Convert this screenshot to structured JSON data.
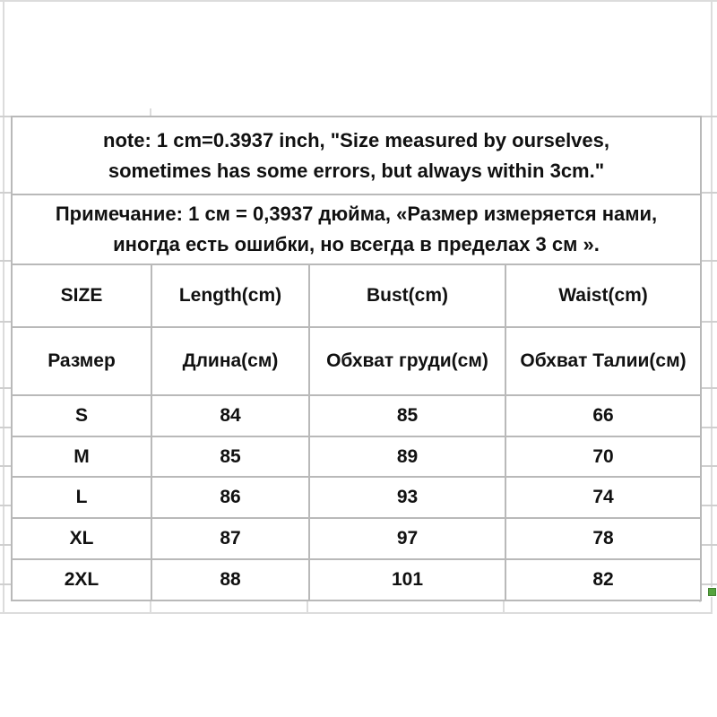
{
  "notes": {
    "en": {
      "line1": "note: 1 cm=0.3937 inch, \"Size measured by ourselves,",
      "line2": "sometimes has some errors, but always within 3cm.\""
    },
    "ru": {
      "line1": "Примечание: 1 см = 0,3937 дюйма, «Размер измеряется нами,",
      "line2": "иногда есть ошибки, но всегда в пределах 3 см »."
    }
  },
  "size_table": {
    "headers_en": [
      "SIZE",
      "Length(cm)",
      "Bust(cm)",
      "Waist(cm)"
    ],
    "headers_ru": [
      "Размер",
      "Длина(см)",
      "Обхват груди(см)",
      "Обхват Талии(см)"
    ],
    "rows": [
      {
        "size": "S",
        "length": "84",
        "bust": "85",
        "waist": "66"
      },
      {
        "size": "M",
        "length": "85",
        "bust": "89",
        "waist": "70"
      },
      {
        "size": "L",
        "length": "86",
        "bust": "93",
        "waist": "74"
      },
      {
        "size": "XL",
        "length": "87",
        "bust": "97",
        "waist": "78"
      },
      {
        "size": "2XL",
        "length": "88",
        "bust": "101",
        "waist": "82"
      }
    ]
  },
  "colors": {
    "table_border": "#b9b9b9",
    "faint_grid": "#dcdcdc",
    "text": "#111111",
    "fill_handle_green": "#56a33e"
  },
  "icons": {
    "fill_handle": "excel-fill-handle"
  }
}
